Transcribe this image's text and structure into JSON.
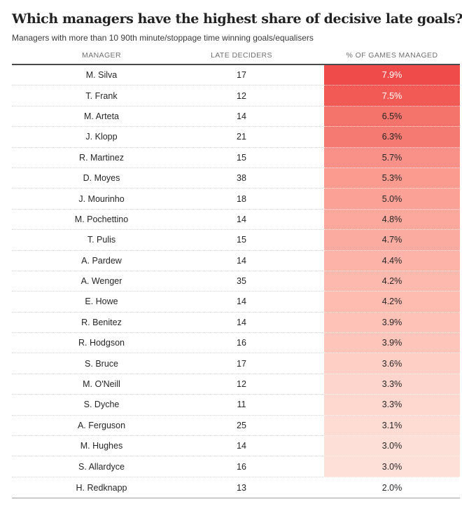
{
  "colors": {
    "accent_red_max": "#ef4b4b",
    "accent_red_min": "#fee0d9",
    "header_underline": "#4a4a4a",
    "table_bottom_border": "#9c9c9c",
    "dotted_separator": "#d6d6d6",
    "header_text": "#6f6f6f",
    "body_text": "#262626",
    "title_text": "#222222"
  },
  "chart_data": {
    "type": "table",
    "title": "Which managers have the highest share of decisive late goals?",
    "subtitle": "Managers with more than 10 90th minute/stoppage time winning goals/equalisers",
    "columns": [
      "MANAGER",
      "LATE DECIDERS",
      "% OF GAMES MANAGED"
    ],
    "heatmap_column": "% OF GAMES MANAGED",
    "rows": [
      {
        "manager": "M. Silva",
        "late_deciders": 17,
        "pct_of_games_managed": "7.9%",
        "cell_bg": "#ef4b4b",
        "cell_text": "#ffffff"
      },
      {
        "manager": "T. Frank",
        "late_deciders": 12,
        "pct_of_games_managed": "7.5%",
        "cell_bg": "#f15a55",
        "cell_text": "#ffffff"
      },
      {
        "manager": "M. Arteta",
        "late_deciders": 14,
        "pct_of_games_managed": "6.5%",
        "cell_bg": "#f4746c",
        "cell_text": "#262626"
      },
      {
        "manager": "J. Klopp",
        "late_deciders": 21,
        "pct_of_games_managed": "6.3%",
        "cell_bg": "#f57a71",
        "cell_text": "#262626"
      },
      {
        "manager": "R. Martinez",
        "late_deciders": 15,
        "pct_of_games_managed": "5.7%",
        "cell_bg": "#fa9189",
        "cell_text": "#262626"
      },
      {
        "manager": "D. Moyes",
        "late_deciders": 38,
        "pct_of_games_managed": "5.3%",
        "cell_bg": "#fb9b90",
        "cell_text": "#262626"
      },
      {
        "manager": "J. Mourinho",
        "late_deciders": 18,
        "pct_of_games_managed": "5.0%",
        "cell_bg": "#fca196",
        "cell_text": "#262626"
      },
      {
        "manager": "M. Pochettino",
        "late_deciders": 14,
        "pct_of_games_managed": "4.8%",
        "cell_bg": "#fca89c",
        "cell_text": "#262626"
      },
      {
        "manager": "T. Pulis",
        "late_deciders": 15,
        "pct_of_games_managed": "4.7%",
        "cell_bg": "#fcaba0",
        "cell_text": "#262626"
      },
      {
        "manager": "A. Pardew",
        "late_deciders": 14,
        "pct_of_games_managed": "4.4%",
        "cell_bg": "#fdb3a7",
        "cell_text": "#262626"
      },
      {
        "manager": "A. Wenger",
        "late_deciders": 35,
        "pct_of_games_managed": "4.2%",
        "cell_bg": "#feb9ae",
        "cell_text": "#262626"
      },
      {
        "manager": "E. Howe",
        "late_deciders": 14,
        "pct_of_games_managed": "4.2%",
        "cell_bg": "#febbb0",
        "cell_text": "#262626"
      },
      {
        "manager": "R. Benitez",
        "late_deciders": 14,
        "pct_of_games_managed": "3.9%",
        "cell_bg": "#fec2b7",
        "cell_text": "#262626"
      },
      {
        "manager": "R. Hodgson",
        "late_deciders": 16,
        "pct_of_games_managed": "3.9%",
        "cell_bg": "#fec5ba",
        "cell_text": "#262626"
      },
      {
        "manager": "S. Bruce",
        "late_deciders": 17,
        "pct_of_games_managed": "3.6%",
        "cell_bg": "#fecfc5",
        "cell_text": "#262626"
      },
      {
        "manager": "M. O'Neill",
        "late_deciders": 12,
        "pct_of_games_managed": "3.3%",
        "cell_bg": "#fed5cc",
        "cell_text": "#262626"
      },
      {
        "manager": "S. Dyche",
        "late_deciders": 11,
        "pct_of_games_managed": "3.3%",
        "cell_bg": "#fed7ce",
        "cell_text": "#262626"
      },
      {
        "manager": "A. Ferguson",
        "late_deciders": 25,
        "pct_of_games_managed": "3.1%",
        "cell_bg": "#fedbd3",
        "cell_text": "#262626"
      },
      {
        "manager": "M. Hughes",
        "late_deciders": 14,
        "pct_of_games_managed": "3.0%",
        "cell_bg": "#fedfd7",
        "cell_text": "#262626"
      },
      {
        "manager": "S. Allardyce",
        "late_deciders": 16,
        "pct_of_games_managed": "3.0%",
        "cell_bg": "#fee0d9",
        "cell_text": "#262626"
      },
      {
        "manager": "H. Redknapp",
        "late_deciders": 13,
        "pct_of_games_managed": "2.0%",
        "cell_bg": "#ffffff",
        "cell_text": "#262626"
      }
    ]
  }
}
